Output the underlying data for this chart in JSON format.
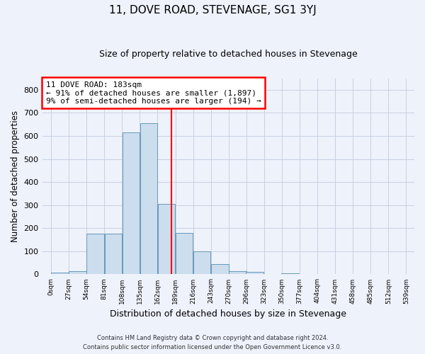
{
  "title": "11, DOVE ROAD, STEVENAGE, SG1 3YJ",
  "subtitle": "Size of property relative to detached houses in Stevenage",
  "xlabel": "Distribution of detached houses by size in Stevenage",
  "ylabel": "Number of detached properties",
  "bar_color": "#ccdded",
  "bar_edge_color": "#6699bb",
  "background_color": "#eef2fb",
  "red_line_x": 183,
  "bin_width": 27,
  "bins_left": [
    0,
    27,
    54,
    81,
    108,
    135,
    162,
    189,
    216,
    243,
    270,
    296,
    323,
    350,
    377,
    404,
    431,
    458,
    485,
    512
  ],
  "bar_heights": [
    8,
    15,
    175,
    175,
    615,
    655,
    305,
    178,
    100,
    45,
    15,
    10,
    0,
    5,
    0,
    0,
    0,
    0,
    0,
    0
  ],
  "tick_labels": [
    "0sqm",
    "27sqm",
    "54sqm",
    "81sqm",
    "108sqm",
    "135sqm",
    "162sqm",
    "189sqm",
    "216sqm",
    "243sqm",
    "270sqm",
    "296sqm",
    "323sqm",
    "350sqm",
    "377sqm",
    "404sqm",
    "431sqm",
    "458sqm",
    "485sqm",
    "512sqm",
    "539sqm"
  ],
  "annotation_line1": "11 DOVE ROAD: 183sqm",
  "annotation_line2": "← 91% of detached houses are smaller (1,897)",
  "annotation_line3": "9% of semi-detached houses are larger (194) →",
  "annotation_box_color": "white",
  "annotation_box_edge_color": "red",
  "ylim": [
    0,
    850
  ],
  "yticks": [
    0,
    100,
    200,
    300,
    400,
    500,
    600,
    700,
    800
  ],
  "footer_line1": "Contains HM Land Registry data © Crown copyright and database right 2024.",
  "footer_line2": "Contains public sector information licensed under the Open Government Licence v3.0.",
  "grid_color": "#c8d0e0"
}
